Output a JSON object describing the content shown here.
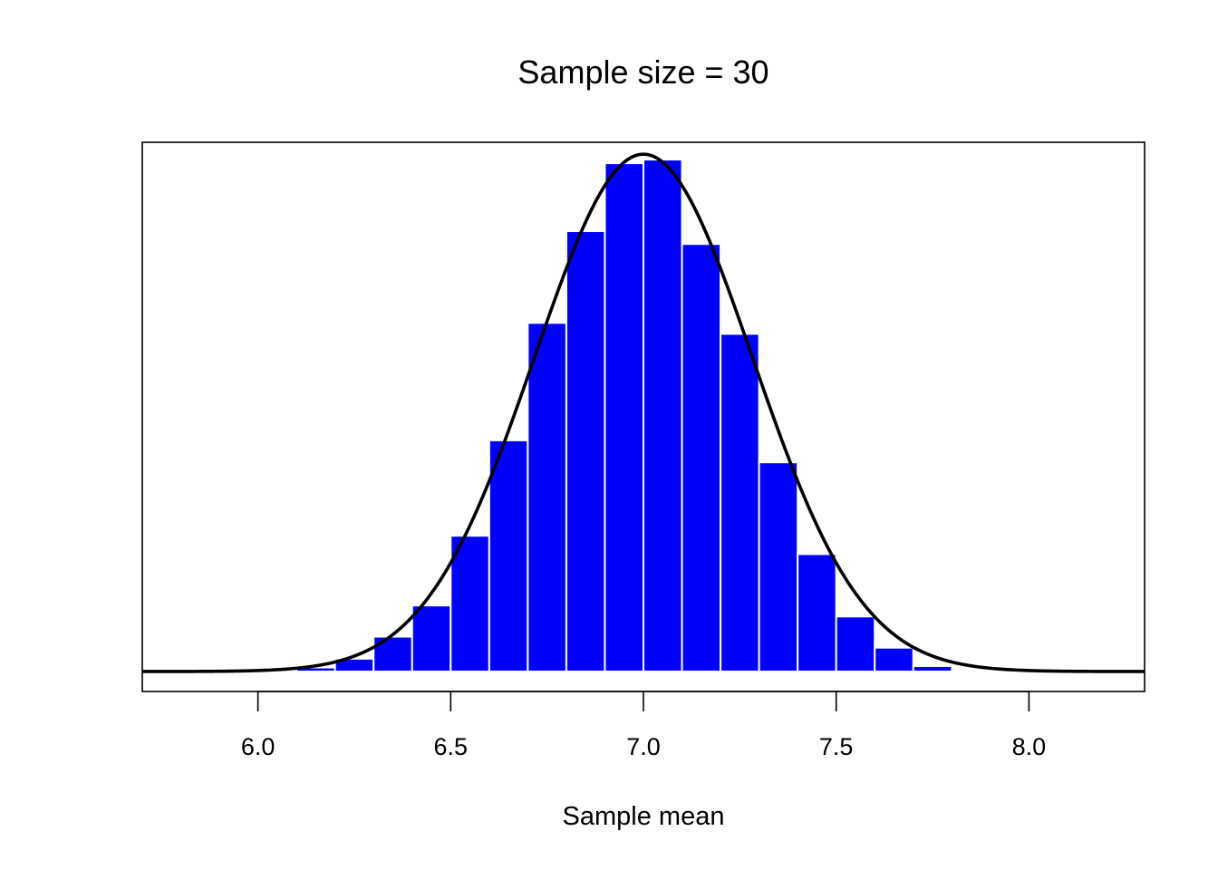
{
  "chart_data": {
    "type": "bar",
    "title": "Sample size = 30",
    "xlabel": "Sample mean",
    "ylabel": "",
    "xlim": [
      5.7,
      8.3
    ],
    "ylim": [
      0,
      1.45
    ],
    "x_ticks": [
      6.0,
      6.5,
      7.0,
      7.5,
      8.0
    ],
    "x_tick_labels": [
      "6.0",
      "6.5",
      "7.0",
      "7.5",
      "8.0"
    ],
    "y_axis_shown": false,
    "bin_width": 0.1,
    "bin_starts": [
      6.1,
      6.2,
      6.3,
      6.4,
      6.5,
      6.6,
      6.7,
      6.8,
      6.9,
      7.0,
      7.1,
      7.2,
      7.3,
      7.4,
      7.5,
      7.6,
      7.7
    ],
    "values": [
      0.011,
      0.035,
      0.095,
      0.18,
      0.37,
      0.63,
      0.95,
      1.2,
      1.385,
      1.395,
      1.165,
      0.92,
      0.57,
      0.32,
      0.15,
      0.065,
      0.015
    ],
    "curve": {
      "type": "normal_density",
      "mean": 7.0,
      "sd": 0.283,
      "color": "#000000"
    },
    "bar_color": "#0000ff",
    "bar_border_color": "#ffffff",
    "grid": false
  }
}
